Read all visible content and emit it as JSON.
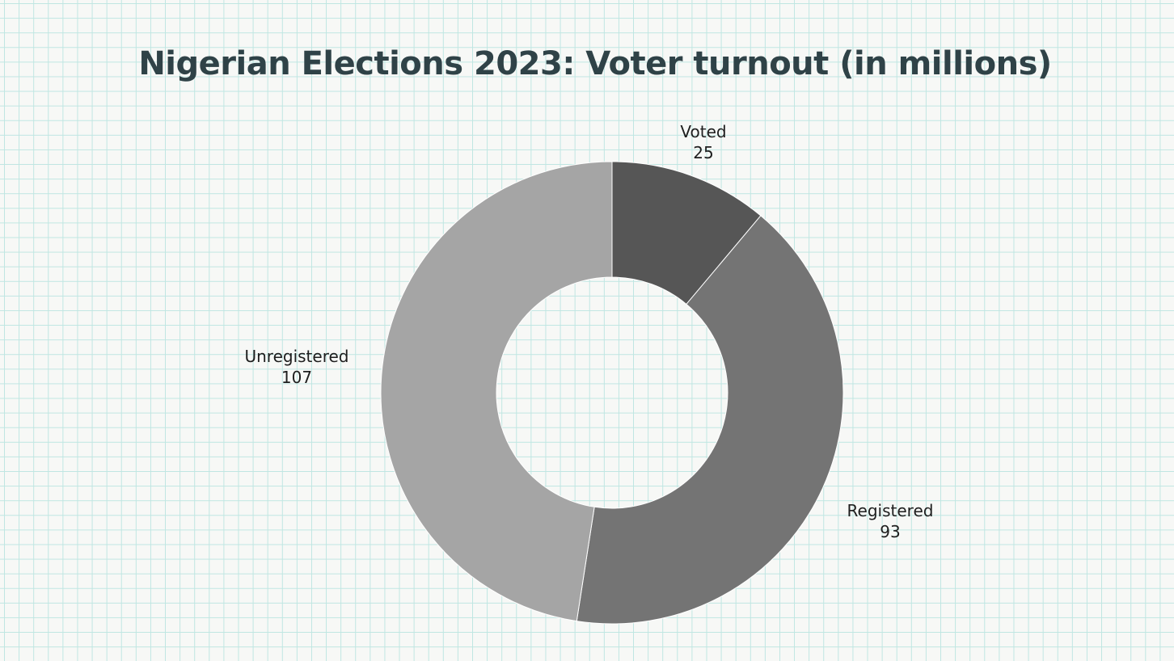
{
  "chart_data": {
    "type": "pie",
    "title": "Nigerian Elections 2023: Voter turnout (in millions)",
    "categories": [
      "Voted",
      "Registered",
      "Unregistered"
    ],
    "values": [
      25,
      93,
      107
    ],
    "colors": [
      "#565656",
      "#747474",
      "#a5a5a5"
    ],
    "hole": "donut"
  }
}
